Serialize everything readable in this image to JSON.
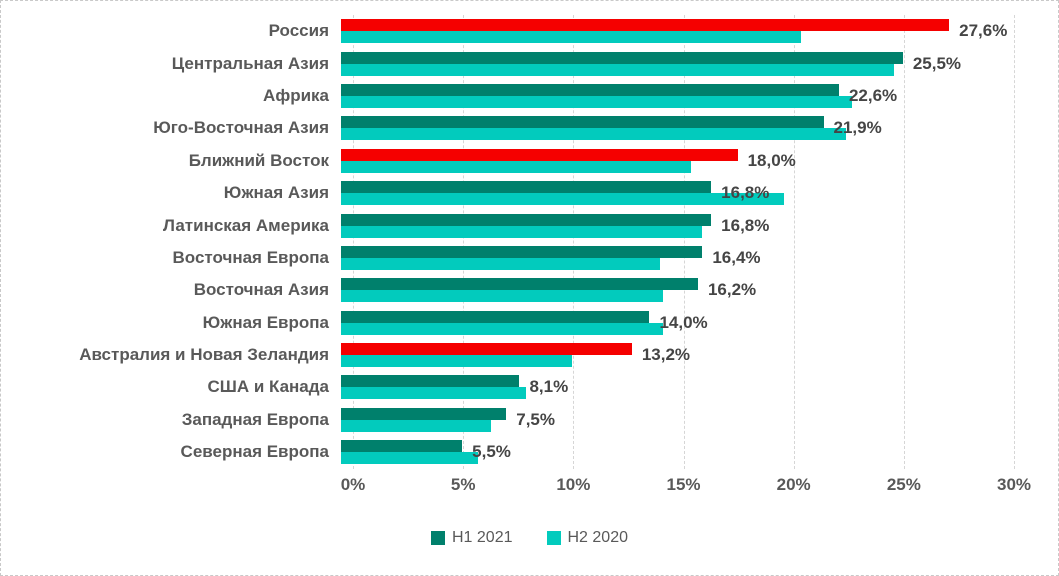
{
  "chart_data": {
    "type": "bar",
    "orientation": "horizontal",
    "title": "",
    "xlabel": "",
    "ylabel": "",
    "xlim": [
      0,
      30
    ],
    "x_ticks": [
      "0%",
      "5%",
      "10%",
      "15%",
      "20%",
      "25%",
      "30%"
    ],
    "grid": "vertical-dashed",
    "legend_position": "bottom-center",
    "categories": [
      "Россия",
      "Центральная Азия",
      "Африка",
      "Юго-Восточная Азия",
      "Ближний Восток",
      "Южная Азия",
      "Латинская Америка",
      "Восточная Европа",
      "Восточная Азия",
      "Южная Европа",
      "Австралия и Новая Зеландия",
      "США и Канада",
      "Западная Европа",
      "Северная Европа"
    ],
    "series": [
      {
        "name": "H1 2021",
        "color": "#00806C",
        "values": [
          27.6,
          25.5,
          22.6,
          21.9,
          18.0,
          16.8,
          16.8,
          16.4,
          16.2,
          14.0,
          13.2,
          8.1,
          7.5,
          5.5
        ],
        "data_labels": [
          "27,6%",
          "25,5%",
          "22,6%",
          "21,9%",
          "18,0%",
          "16,8%",
          "16,8%",
          "16,4%",
          "16,2%",
          "14,0%",
          "13,2%",
          "8,1%",
          "7,5%",
          "5,5%"
        ],
        "highlight_color": "#F50000",
        "highlighted_categories": [
          "Россия",
          "Ближний Восток",
          "Австралия и Новая Зеландия"
        ]
      },
      {
        "name": "H2 2020",
        "color": "#02CBBD",
        "values": [
          20.9,
          25.1,
          23.2,
          22.9,
          15.9,
          20.1,
          16.4,
          14.5,
          14.6,
          14.6,
          10.5,
          8.4,
          6.8,
          6.2
        ],
        "data_labels": []
      }
    ]
  },
  "legend": {
    "items": [
      {
        "label": "H1 2021",
        "color": "#00806C"
      },
      {
        "label": "H2 2020",
        "color": "#02CBBD"
      }
    ]
  },
  "colors": {
    "grid": "#d6d6d6",
    "text": "#595959",
    "value_label": "#454545",
    "frame_border": "#c9c9c9"
  }
}
